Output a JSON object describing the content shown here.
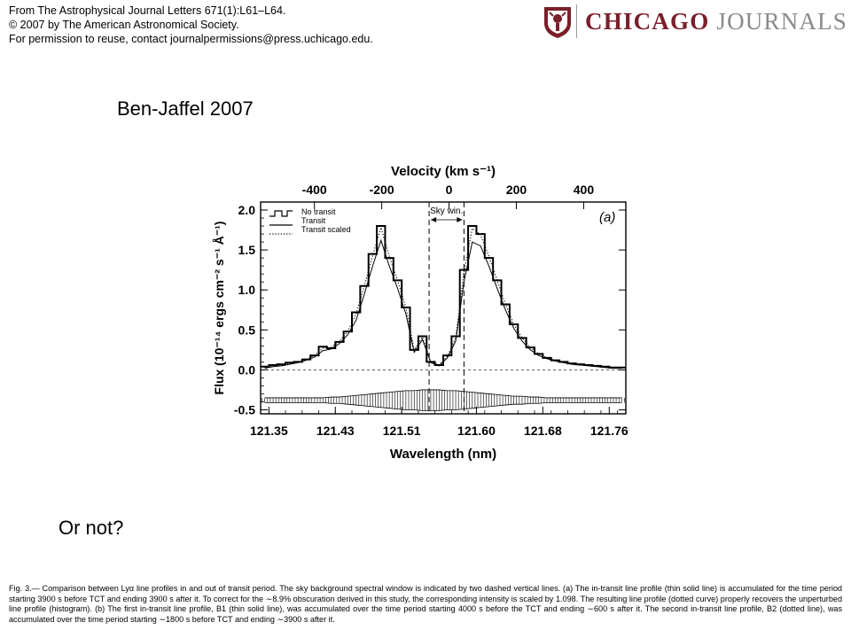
{
  "source": {
    "line1": "From The Astrophysical Journal Letters 671(1):L61–L64.",
    "line2": "© 2007 by The American Astronomical Society.",
    "line3": "For permission to reuse, contact journalpermissions@press.uchicago.edu."
  },
  "logo": {
    "word1": "CHICAGO",
    "word2": "JOURNALS",
    "color": "#7a1f2b"
  },
  "slide": {
    "title": "Ben-Jaffel 2007",
    "question": "Or not?"
  },
  "chart_data": {
    "type": "line",
    "panel_label": "(a)",
    "xlabel": "Wavelength (nm)",
    "ylabel": "Flux (10⁻¹⁴ ergs cm⁻² s⁻¹ Å⁻¹)",
    "top_axis_label": "Velocity (km s⁻¹)",
    "xlim": [
      121.34,
      121.78
    ],
    "ylim": [
      -0.55,
      2.1
    ],
    "x_ticks": [
      "121.35",
      "121.43",
      "121.51",
      "121.60",
      "121.68",
      "121.76"
    ],
    "y_ticks": [
      "2.0",
      "1.5",
      "1.0",
      "0.5",
      "0.0",
      "-0.5"
    ],
    "velocity_ticks": [
      "-400",
      "-200",
      "0",
      "200",
      "400"
    ],
    "velocity_tick_values": [
      -400,
      -200,
      0,
      200,
      400
    ],
    "rest_wavelength_nm": 121.567,
    "sky_window_label": "Sky win.",
    "sky_window": [
      121.543,
      121.585
    ],
    "legend": [
      "No transit",
      "Transit",
      "Transit scaled"
    ],
    "legend_placement": "top-left",
    "series": [
      {
        "name": "No transit",
        "style": "histogram",
        "x": [
          121.345,
          121.355,
          121.365,
          121.375,
          121.385,
          121.395,
          121.405,
          121.415,
          121.425,
          121.435,
          121.445,
          121.455,
          121.465,
          121.475,
          121.485,
          121.495,
          121.505,
          121.515,
          121.525,
          121.535,
          121.545,
          121.555,
          121.565,
          121.575,
          121.585,
          121.595,
          121.605,
          121.615,
          121.625,
          121.635,
          121.645,
          121.655,
          121.665,
          121.675,
          121.685,
          121.695,
          121.705,
          121.715,
          121.725,
          121.735,
          121.745,
          121.755,
          121.765,
          121.775
        ],
        "values": [
          0.04,
          0.06,
          0.07,
          0.09,
          0.1,
          0.13,
          0.18,
          0.29,
          0.27,
          0.35,
          0.48,
          0.72,
          1.05,
          1.45,
          1.8,
          1.4,
          1.12,
          0.78,
          0.25,
          0.42,
          0.1,
          0.06,
          0.18,
          0.42,
          1.25,
          1.8,
          1.7,
          1.4,
          1.12,
          0.82,
          0.57,
          0.4,
          0.28,
          0.2,
          0.15,
          0.12,
          0.1,
          0.08,
          0.07,
          0.06,
          0.05,
          0.04,
          0.03,
          0.03
        ]
      },
      {
        "name": "Transit",
        "style": "solid",
        "x": [
          121.345,
          121.355,
          121.365,
          121.375,
          121.385,
          121.395,
          121.405,
          121.415,
          121.425,
          121.435,
          121.445,
          121.455,
          121.465,
          121.475,
          121.485,
          121.495,
          121.505,
          121.515,
          121.525,
          121.535,
          121.545,
          121.555,
          121.565,
          121.575,
          121.585,
          121.595,
          121.605,
          121.615,
          121.625,
          121.635,
          121.645,
          121.655,
          121.665,
          121.675,
          121.685,
          121.695,
          121.705,
          121.715,
          121.725,
          121.735,
          121.745,
          121.755,
          121.765,
          121.775
        ],
        "values": [
          0.02,
          0.04,
          0.05,
          0.07,
          0.09,
          0.12,
          0.16,
          0.24,
          0.26,
          0.33,
          0.44,
          0.62,
          0.95,
          1.3,
          1.62,
          1.3,
          1.02,
          0.7,
          0.22,
          0.38,
          0.09,
          0.05,
          0.15,
          0.36,
          1.1,
          1.6,
          1.55,
          1.3,
          1.02,
          0.75,
          0.52,
          0.36,
          0.25,
          0.18,
          0.14,
          0.11,
          0.09,
          0.07,
          0.06,
          0.05,
          0.04,
          0.03,
          0.02,
          0.02
        ]
      },
      {
        "name": "Transit scaled",
        "style": "dotted",
        "x": [
          121.345,
          121.355,
          121.365,
          121.375,
          121.385,
          121.395,
          121.405,
          121.415,
          121.425,
          121.435,
          121.445,
          121.455,
          121.465,
          121.475,
          121.485,
          121.495,
          121.505,
          121.515,
          121.525,
          121.535,
          121.545,
          121.555,
          121.565,
          121.575,
          121.585,
          121.595,
          121.605,
          121.615,
          121.625,
          121.635,
          121.645,
          121.655,
          121.665,
          121.675,
          121.685,
          121.695,
          121.705,
          121.715,
          121.725,
          121.735,
          121.745,
          121.755,
          121.765,
          121.775
        ],
        "values": [
          0.03,
          0.05,
          0.06,
          0.08,
          0.1,
          0.13,
          0.18,
          0.27,
          0.28,
          0.36,
          0.48,
          0.7,
          1.05,
          1.43,
          1.78,
          1.42,
          1.12,
          0.78,
          0.25,
          0.41,
          0.1,
          0.06,
          0.17,
          0.4,
          1.22,
          1.77,
          1.69,
          1.42,
          1.12,
          0.82,
          0.57,
          0.4,
          0.28,
          0.2,
          0.15,
          0.12,
          0.1,
          0.08,
          0.07,
          0.06,
          0.05,
          0.04,
          0.03,
          0.03
        ]
      }
    ],
    "error_band": {
      "style": "vertical-bars",
      "center_y": -0.38,
      "half_width": [
        0.03,
        0.03,
        0.03,
        0.03,
        0.03,
        0.03,
        0.03,
        0.03,
        0.04,
        0.04,
        0.05,
        0.06,
        0.07,
        0.08,
        0.09,
        0.1,
        0.11,
        0.12,
        0.12,
        0.13,
        0.13,
        0.13,
        0.12,
        0.12,
        0.11,
        0.1,
        0.09,
        0.08,
        0.07,
        0.06,
        0.05,
        0.05,
        0.04,
        0.04,
        0.03,
        0.03,
        0.03,
        0.03,
        0.03,
        0.03,
        0.03,
        0.03,
        0.03,
        0.03
      ]
    }
  },
  "caption": {
    "text": "Fig. 3.— Comparison between Lyα line profiles in and out of transit period. The sky background spectral window is indicated by two dashed vertical lines. (a) The in-transit line profile (thin solid line) is accumulated for the time period starting 3900 s before TCT and ending 3900 s after it. To correct for the ∼8.9% obscuration derived in this study, the corresponding intensity is scaled by 1.098. The resulting line profile (dotted curve) properly recovers the unperturbed line profile (histogram). (b) The first in-transit line profile, B1 (thin solid line), was accumulated over the time period starting 4000 s before the TCT and ending ∼600 s after it. The second in-transit line profile, B2 (dotted line), was accumulated over the time period starting ∼1800 s before TCT and ending ∼3900 s after it."
  }
}
